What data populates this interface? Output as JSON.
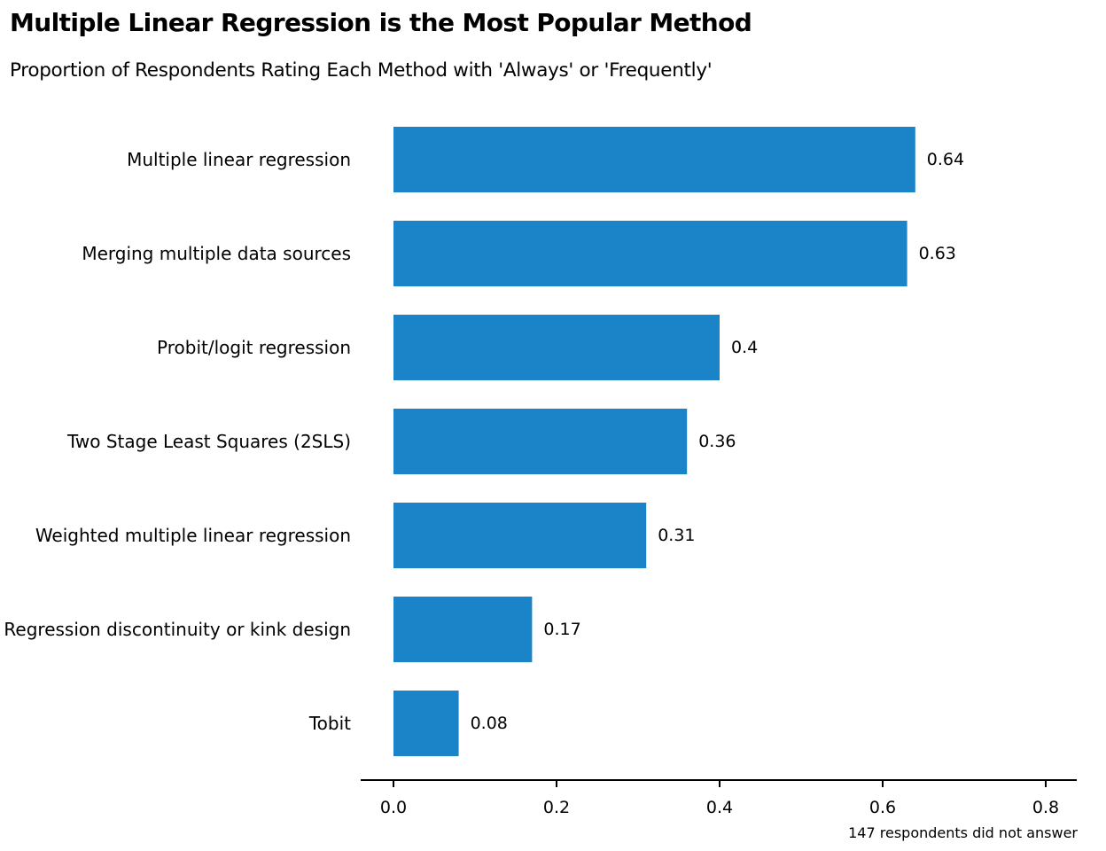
{
  "chart_data": {
    "type": "bar",
    "orientation": "horizontal",
    "title": "Multiple Linear Regression is the Most Popular Method",
    "subtitle": "Proportion of Respondents Rating Each Method with 'Always' or 'Frequently'",
    "categories": [
      "Multiple linear regression",
      "Merging multiple data sources",
      "Probit/logit regression",
      "Two Stage Least Squares (2SLS)",
      "Weighted multiple linear regression",
      "Regression discontinuity or kink design",
      "Tobit"
    ],
    "values": [
      0.64,
      0.63,
      0.4,
      0.36,
      0.31,
      0.17,
      0.08
    ],
    "value_labels": [
      "0.64",
      "0.63",
      "0.4",
      "0.36",
      "0.31",
      "0.17",
      "0.08"
    ],
    "xlim": [
      0,
      0.8
    ],
    "x_ticks": [
      0.0,
      0.2,
      0.4,
      0.6,
      0.8
    ],
    "x_tick_labels": [
      "0.0",
      "0.2",
      "0.4",
      "0.6",
      "0.8"
    ],
    "caption": "147 respondents did not answer",
    "bar_color": "#1b84c9",
    "grid": false,
    "legend": "none"
  }
}
